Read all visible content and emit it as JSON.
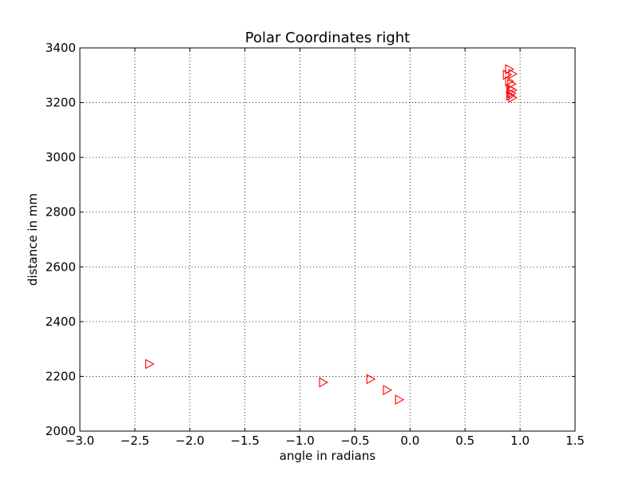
{
  "chart_data": {
    "type": "scatter",
    "title": "Polar Coordinates right",
    "xlabel": "angle in radians",
    "ylabel": "distance in mm",
    "xlim": [
      -3.0,
      1.5
    ],
    "ylim": [
      2000,
      3400
    ],
    "xticks": [
      "−3.0",
      "−2.5",
      "−2.0",
      "−1.5",
      "−1.0",
      "−0.5",
      "0.0",
      "0.5",
      "1.0",
      "1.5"
    ],
    "xtick_values": [
      -3.0,
      -2.5,
      -2.0,
      -1.5,
      -1.0,
      -0.5,
      0.0,
      0.5,
      1.0,
      1.5
    ],
    "yticks": [
      "2000",
      "2200",
      "2400",
      "2600",
      "2800",
      "3000",
      "3200",
      "3400"
    ],
    "ytick_values": [
      2000,
      2200,
      2400,
      2600,
      2800,
      3000,
      3200,
      3400
    ],
    "grid": true,
    "marker": "triangle-right",
    "marker_color": "#ff0000",
    "points": [
      {
        "x": -2.37,
        "y": 2245
      },
      {
        "x": -0.79,
        "y": 2178
      },
      {
        "x": -0.36,
        "y": 2190
      },
      {
        "x": -0.21,
        "y": 2150
      },
      {
        "x": -0.1,
        "y": 2115
      },
      {
        "x": 0.88,
        "y": 3302
      },
      {
        "x": 0.9,
        "y": 3322
      },
      {
        "x": 0.93,
        "y": 3305
      },
      {
        "x": 0.9,
        "y": 3278
      },
      {
        "x": 0.92,
        "y": 3268
      },
      {
        "x": 0.91,
        "y": 3250
      },
      {
        "x": 0.93,
        "y": 3246
      },
      {
        "x": 0.92,
        "y": 3234
      },
      {
        "x": 0.91,
        "y": 3225
      },
      {
        "x": 0.93,
        "y": 3218
      }
    ]
  }
}
